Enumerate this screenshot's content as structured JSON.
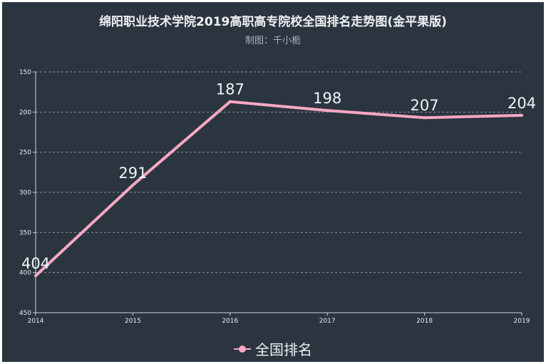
{
  "chart_data": {
    "type": "line",
    "title": "绵阳职业技术学院2019高职高专院校全国排名走势图(金平果版)",
    "subtitle": "制图：千小栀",
    "categories": [
      "2014",
      "2015",
      "2016",
      "2017",
      "2018",
      "2019"
    ],
    "series": [
      {
        "name": "全国排名",
        "values": [
          404,
          291,
          187,
          198,
          207,
          204
        ],
        "color": "#f7a8c2"
      }
    ],
    "ylim": [
      150,
      450
    ],
    "y_inverted": true,
    "yticks": [
      150,
      200,
      250,
      300,
      350,
      400,
      450
    ],
    "grid": true,
    "legend": "bottom-center"
  }
}
